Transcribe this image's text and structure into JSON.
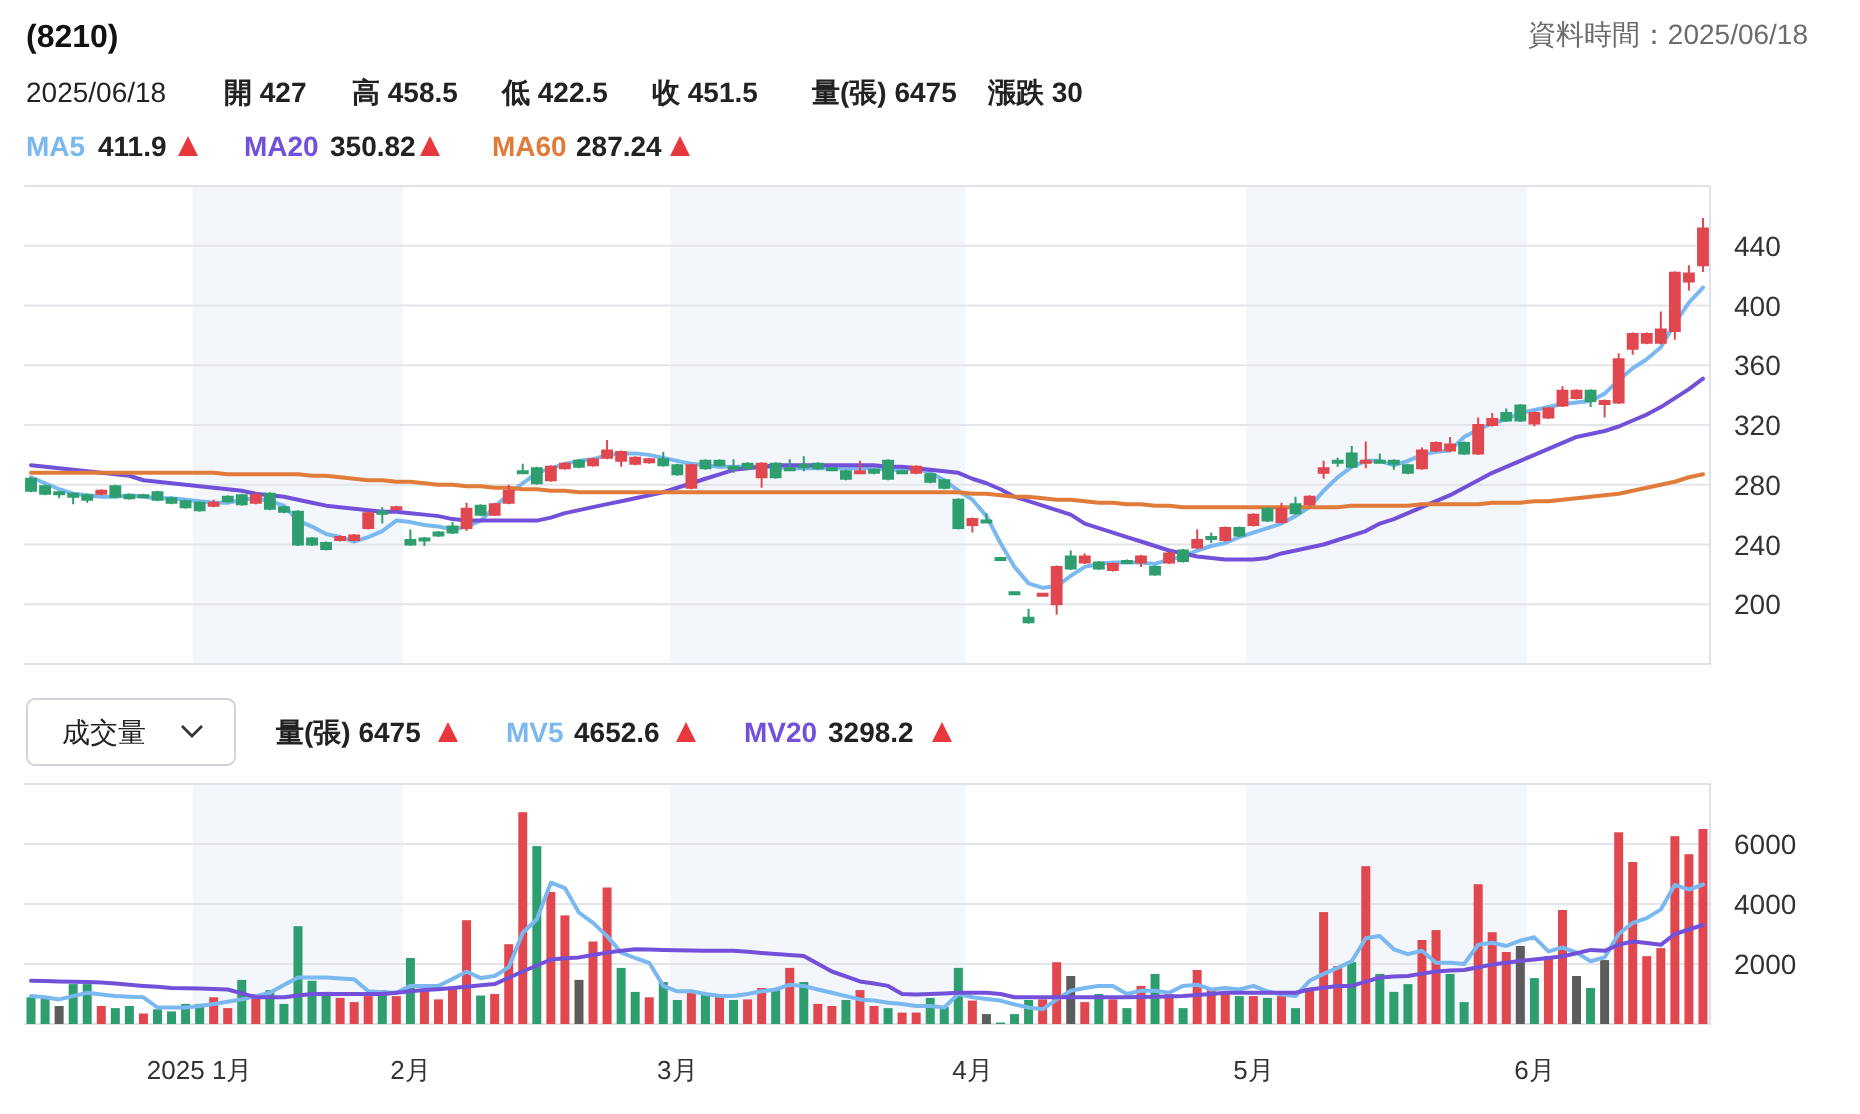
{
  "chart_data": [
    {
      "type": "candlestick",
      "title": "(8210)",
      "annotations": [
        "資料時間：2025/06/18",
        "2025/06/18",
        "開 427",
        "高 458.5",
        "低 422.5",
        "收 451.5",
        "量(張) 6475",
        "漲跌 30",
        "411.9",
        "350.82",
        "287.24"
      ],
      "categories": [
        null,
        null,
        null,
        null,
        null,
        null,
        null,
        null,
        null,
        null,
        null,
        null,
        "2025 1月",
        null,
        null,
        null,
        null,
        null,
        null,
        null,
        null,
        null,
        null,
        null,
        null,
        null,
        null,
        "2月",
        null,
        null,
        null,
        null,
        null,
        null,
        null,
        null,
        null,
        null,
        null,
        null,
        null,
        null,
        null,
        null,
        null,
        null,
        "3月",
        null,
        null,
        null,
        null,
        null,
        null,
        null,
        null,
        null,
        null,
        null,
        null,
        null,
        null,
        null,
        null,
        null,
        null,
        null,
        null,
        "4月",
        null,
        null,
        null,
        null,
        null,
        null,
        null,
        null,
        null,
        null,
        null,
        null,
        null,
        null,
        null,
        null,
        null,
        null,
        null,
        "5月",
        null,
        null,
        null,
        null,
        null,
        null,
        null,
        null,
        null,
        null,
        null,
        null,
        null,
        null,
        null,
        null,
        null,
        null,
        null,
        "6月",
        null,
        null,
        null,
        null,
        null,
        null,
        null,
        null,
        null,
        null,
        null,
        null
      ],
      "ohlc": [
        [
          284,
          285,
          275,
          276
        ],
        [
          279,
          280,
          273,
          274
        ],
        [
          275,
          276,
          271,
          274
        ],
        [
          274,
          275,
          267,
          272
        ],
        [
          273,
          274,
          268,
          270
        ],
        [
          274,
          277,
          273,
          276
        ],
        [
          279,
          280,
          271,
          272
        ],
        [
          273,
          274,
          270,
          271
        ],
        [
          273,
          274,
          271,
          272
        ],
        [
          275,
          276,
          269,
          270
        ],
        [
          271,
          272,
          267,
          268
        ],
        [
          269,
          270,
          264,
          265
        ],
        [
          268,
          269,
          262,
          263
        ],
        [
          266,
          270,
          265,
          268
        ],
        [
          272,
          273,
          268,
          269
        ],
        [
          273,
          274,
          266,
          267
        ],
        [
          268,
          275,
          267,
          273
        ],
        [
          274,
          275,
          263,
          264
        ],
        [
          265,
          266,
          261,
          262
        ],
        [
          262,
          263,
          239,
          240
        ],
        [
          244,
          245,
          239,
          240
        ],
        [
          241,
          242,
          236,
          237
        ],
        [
          243,
          246,
          242,
          245
        ],
        [
          243,
          247,
          242,
          246
        ],
        [
          251,
          262,
          250,
          261
        ],
        [
          262,
          265,
          254,
          261
        ],
        [
          264,
          266,
          263,
          265
        ],
        [
          243,
          250,
          239,
          240
        ],
        [
          244,
          245,
          239,
          243
        ],
        [
          248,
          249,
          245,
          246
        ],
        [
          252,
          255,
          247,
          248
        ],
        [
          251,
          268,
          249,
          264
        ],
        [
          266,
          267,
          259,
          260
        ],
        [
          260,
          268,
          259,
          267
        ],
        [
          268,
          280,
          267,
          276
        ],
        [
          289,
          294,
          287,
          288
        ],
        [
          291,
          292,
          280,
          281
        ],
        [
          283,
          293,
          282,
          292
        ],
        [
          291,
          295,
          290,
          294
        ],
        [
          296,
          297,
          291,
          292
        ],
        [
          293,
          298,
          292,
          297
        ],
        [
          298,
          310,
          297,
          303
        ],
        [
          296,
          303,
          292,
          302
        ],
        [
          294,
          299,
          293,
          298
        ],
        [
          295,
          298,
          294,
          297
        ],
        [
          297,
          302,
          292,
          293
        ],
        [
          293,
          294,
          286,
          287
        ],
        [
          278,
          294,
          277,
          293
        ],
        [
          296,
          297,
          290,
          291
        ],
        [
          296,
          297,
          292,
          293
        ],
        [
          292,
          297,
          288,
          291
        ],
        [
          294,
          295,
          290,
          291
        ],
        [
          285,
          295,
          278,
          294
        ],
        [
          294,
          295,
          284,
          285
        ],
        [
          291,
          297,
          290,
          290
        ],
        [
          293,
          299,
          289,
          292
        ],
        [
          294,
          295,
          290,
          291
        ],
        [
          291,
          292,
          289,
          290
        ],
        [
          289,
          290,
          283,
          284
        ],
        [
          288,
          296,
          287,
          289
        ],
        [
          290,
          291,
          287,
          288
        ],
        [
          296,
          297,
          283,
          284
        ],
        [
          289,
          290,
          287,
          288
        ],
        [
          288,
          293,
          287,
          292
        ],
        [
          287,
          288,
          281,
          282
        ],
        [
          283,
          284,
          277,
          278
        ],
        [
          270,
          271,
          250,
          251
        ],
        [
          253,
          258,
          248,
          257
        ],
        [
          256,
          261,
          255,
          256
        ],
        [
          231,
          231,
          231,
          231
        ],
        [
          208,
          208,
          208,
          208
        ],
        [
          191,
          197,
          187,
          188
        ],
        [
          207,
          207,
          207,
          207
        ],
        [
          200,
          226,
          193,
          225
        ],
        [
          232,
          236,
          223,
          224
        ],
        [
          228,
          234,
          227,
          232
        ],
        [
          228,
          229,
          223,
          224
        ],
        [
          223,
          228,
          222,
          227
        ],
        [
          229,
          230,
          228,
          228
        ],
        [
          228,
          233,
          225,
          232
        ],
        [
          225,
          226,
          219,
          220
        ],
        [
          228,
          235,
          227,
          234
        ],
        [
          236,
          237,
          228,
          229
        ],
        [
          238,
          250,
          237,
          243
        ],
        [
          245,
          248,
          241,
          244
        ],
        [
          243,
          252,
          242,
          251
        ],
        [
          251,
          252,
          245,
          246
        ],
        [
          253,
          261,
          252,
          260
        ],
        [
          264,
          265,
          255,
          256
        ],
        [
          255,
          268,
          254,
          264
        ],
        [
          267,
          272,
          260,
          261
        ],
        [
          267,
          273,
          266,
          272
        ],
        [
          288,
          296,
          284,
          291
        ],
        [
          296,
          298,
          292,
          295
        ],
        [
          301,
          306,
          291,
          292
        ],
        [
          295,
          309,
          291,
          296
        ],
        [
          296,
          301,
          294,
          295
        ],
        [
          296,
          297,
          290,
          294
        ],
        [
          293,
          294,
          287,
          288
        ],
        [
          291,
          305,
          290,
          303
        ],
        [
          303,
          309,
          302,
          308
        ],
        [
          303,
          312,
          302,
          307
        ],
        [
          308,
          309,
          300,
          301
        ],
        [
          301,
          325,
          300,
          320
        ],
        [
          320,
          328,
          319,
          324
        ],
        [
          328,
          331,
          322,
          323
        ],
        [
          333,
          334,
          322,
          323
        ],
        [
          321,
          329,
          319,
          328
        ],
        [
          325,
          332,
          324,
          331
        ],
        [
          333,
          346,
          332,
          343
        ],
        [
          338,
          344,
          337,
          343
        ],
        [
          343,
          344,
          332,
          336
        ],
        [
          334,
          337,
          325,
          336
        ],
        [
          335,
          368,
          334,
          364
        ],
        [
          371,
          382,
          367,
          381
        ],
        [
          375,
          382,
          374,
          381
        ],
        [
          375,
          396,
          374,
          384
        ],
        [
          383,
          423,
          377,
          422
        ],
        [
          416,
          427,
          410,
          421.5
        ],
        [
          427,
          458.5,
          422.5,
          451.5
        ]
      ],
      "colors": [
        "#2e9e6e",
        "#2e9e6e",
        "#2e9e6e",
        "#2e9e6e",
        "#2e9e6e",
        "#e0474f",
        "#2e9e6e",
        "#2e9e6e",
        "#2e9e6e",
        "#2e9e6e",
        "#2e9e6e",
        "#2e9e6e",
        "#2e9e6e",
        "#e0474f",
        "#2e9e6e",
        "#2e9e6e",
        "#e0474f",
        "#2e9e6e",
        "#2e9e6e",
        "#2e9e6e",
        "#2e9e6e",
        "#2e9e6e",
        "#e0474f",
        "#e0474f",
        "#e0474f",
        "#2e9e6e",
        "#e0474f",
        "#2e9e6e",
        "#2e9e6e",
        "#2e9e6e",
        "#2e9e6e",
        "#e0474f",
        "#2e9e6e",
        "#e0474f",
        "#e0474f",
        "#2e9e6e",
        "#2e9e6e",
        "#e0474f",
        "#e0474f",
        "#2e9e6e",
        "#e0474f",
        "#e0474f",
        "#e0474f",
        "#e0474f",
        "#e0474f",
        "#2e9e6e",
        "#2e9e6e",
        "#e0474f",
        "#2e9e6e",
        "#2e9e6e",
        "#2e9e6e",
        "#2e9e6e",
        "#e0474f",
        "#2e9e6e",
        "#2e9e6e",
        "#2e9e6e",
        "#2e9e6e",
        "#2e9e6e",
        "#2e9e6e",
        "#e0474f",
        "#2e9e6e",
        "#2e9e6e",
        "#2e9e6e",
        "#e0474f",
        "#2e9e6e",
        "#2e9e6e",
        "#2e9e6e",
        "#e0474f",
        "#2e9e6e",
        "#2e9e6e",
        "#2e9e6e",
        "#2e9e6e",
        "#e0474f",
        "#e0474f",
        "#2e9e6e",
        "#e0474f",
        "#2e9e6e",
        "#e0474f",
        "#2e9e6e",
        "#e0474f",
        "#2e9e6e",
        "#e0474f",
        "#2e9e6e",
        "#e0474f",
        "#2e9e6e",
        "#e0474f",
        "#2e9e6e",
        "#e0474f",
        "#2e9e6e",
        "#e0474f",
        "#2e9e6e",
        "#e0474f",
        "#e0474f",
        "#2e9e6e",
        "#2e9e6e",
        "#e0474f",
        "#2e9e6e",
        "#2e9e6e",
        "#2e9e6e",
        "#e0474f",
        "#e0474f",
        "#e0474f",
        "#2e9e6e",
        "#e0474f",
        "#e0474f",
        "#2e9e6e",
        "#2e9e6e",
        "#e0474f",
        "#e0474f",
        "#e0474f",
        "#e0474f",
        "#2e9e6e",
        "#e0474f",
        "#e0474f",
        "#e0474f",
        "#e0474f",
        "#e0474f",
        "#e0474f",
        "#e0474f",
        "#e0474f"
      ],
      "series": [
        {
          "name": "MA5",
          "type": "line",
          "color": "#7ab8f0",
          "values": [
            285,
            281,
            277,
            274,
            273,
            272,
            272,
            273,
            272,
            271,
            271,
            270,
            269,
            268,
            268,
            270,
            271,
            269,
            266,
            256,
            252,
            247,
            245,
            242,
            245,
            249,
            256,
            255,
            253,
            252,
            250,
            252,
            256,
            265,
            274,
            281,
            288,
            291,
            294,
            296,
            297,
            300,
            301,
            301,
            300,
            298,
            296,
            294,
            293,
            292,
            292,
            292,
            292,
            292,
            291,
            291,
            291,
            291,
            291,
            291,
            291,
            290,
            290,
            291,
            288,
            283,
            276,
            270,
            259,
            241,
            225,
            214,
            211,
            212,
            219,
            225,
            227,
            228,
            228,
            228,
            227,
            230,
            232,
            236,
            239,
            241,
            245,
            248,
            251,
            254,
            259,
            265,
            276,
            285,
            292,
            296,
            296,
            293,
            296,
            300,
            302,
            303,
            312,
            317,
            321,
            324,
            328,
            330,
            332,
            334,
            335,
            336,
            341,
            350,
            358,
            364,
            372,
            388,
            402,
            412
          ]
        },
        {
          "name": "MA20",
          "type": "line",
          "color": "#7350d9",
          "values": [
            293,
            292,
            291,
            290,
            289,
            288,
            287,
            286,
            283,
            282,
            281,
            280,
            279,
            278,
            277,
            276,
            274,
            273,
            272,
            270,
            268,
            266,
            265,
            264,
            263,
            262,
            262,
            261,
            260,
            259,
            257,
            256,
            256,
            256,
            256,
            256,
            256,
            258,
            261,
            263,
            265,
            267,
            269,
            271,
            273,
            275,
            278,
            281,
            284,
            287,
            290,
            291,
            292,
            293,
            293,
            293,
            293,
            293,
            293,
            293,
            293,
            292,
            292,
            291,
            290,
            289,
            288,
            284,
            281,
            277,
            272,
            269,
            266,
            263,
            260,
            254,
            251,
            248,
            245,
            242,
            239,
            236,
            234,
            232,
            231,
            230,
            230,
            230,
            231,
            234,
            236,
            238,
            240,
            243,
            246,
            249,
            254,
            257,
            261,
            265,
            269,
            273,
            278,
            283,
            288,
            292,
            296,
            300,
            304,
            308,
            312,
            314,
            316,
            319,
            323,
            327,
            332,
            338,
            344,
            351
          ]
        },
        {
          "name": "MA60",
          "type": "line",
          "color": "#e07b39",
          "values": [
            288,
            288,
            288,
            288,
            288,
            288,
            288,
            288,
            288,
            288,
            288,
            288,
            288,
            288,
            287,
            287,
            287,
            287,
            287,
            287,
            286,
            286,
            285,
            284,
            283,
            283,
            282,
            282,
            281,
            280,
            280,
            279,
            279,
            278,
            278,
            277,
            277,
            276,
            276,
            275,
            275,
            275,
            275,
            275,
            275,
            275,
            275,
            275,
            275,
            275,
            275,
            275,
            275,
            275,
            275,
            275,
            275,
            275,
            275,
            275,
            275,
            275,
            275,
            275,
            275,
            275,
            275,
            274,
            274,
            273,
            272,
            272,
            271,
            270,
            270,
            269,
            268,
            268,
            267,
            267,
            266,
            266,
            265,
            265,
            265,
            265,
            265,
            265,
            265,
            265,
            265,
            265,
            265,
            265,
            266,
            266,
            266,
            266,
            266,
            267,
            267,
            267,
            267,
            267,
            268,
            268,
            268,
            269,
            269,
            270,
            271,
            272,
            273,
            274,
            276,
            278,
            280,
            282,
            285,
            287
          ]
        }
      ],
      "bands": [
        {
          "axis": "x",
          "from": "2025 1月",
          "to": "2月",
          "color": "#f3f6fa"
        },
        {
          "axis": "x",
          "from": "3月",
          "to": "4月",
          "color": "#f3f6fa"
        },
        {
          "axis": "x",
          "from": "5月",
          "to": "6月",
          "color": "#f3f6fa"
        }
      ],
      "ylim": [
        160,
        480
      ],
      "yticks": [
        200,
        240,
        280,
        320,
        360,
        400,
        440
      ],
      "grid": "y",
      "tick_labels": "y",
      "legend": "top left"
    },
    {
      "type": "bar",
      "annotations": [
        "成交量",
        "量(張) 6475",
        "4652.6",
        "3298.2"
      ],
      "categories": [
        null,
        null,
        null,
        null,
        null,
        null,
        null,
        null,
        null,
        null,
        null,
        null,
        "2025 1月",
        null,
        null,
        null,
        null,
        null,
        null,
        null,
        null,
        null,
        null,
        null,
        null,
        null,
        null,
        "2月",
        null,
        null,
        null,
        null,
        null,
        null,
        null,
        null,
        null,
        null,
        null,
        null,
        null,
        null,
        null,
        null,
        null,
        null,
        "3月",
        null,
        null,
        null,
        null,
        null,
        null,
        null,
        null,
        null,
        null,
        null,
        null,
        null,
        null,
        null,
        null,
        null,
        null,
        null,
        null,
        "4月",
        null,
        null,
        null,
        null,
        null,
        null,
        null,
        null,
        null,
        null,
        null,
        null,
        null,
        null,
        null,
        null,
        null,
        null,
        null,
        "5月",
        null,
        null,
        null,
        null,
        null,
        null,
        null,
        null,
        null,
        null,
        null,
        null,
        null,
        null,
        null,
        null,
        null,
        null,
        null,
        "6月",
        null,
        null,
        null,
        null,
        null,
        null,
        null,
        null,
        null,
        null,
        null,
        null
      ],
      "series": [
        {
          "type": "bar",
          "values": [
            890,
            930,
            600,
            1330,
            1330,
            600,
            530,
            600,
            350,
            490,
            420,
            670,
            670,
            890,
            530,
            1470,
            1000,
            1130,
            670,
            3260,
            1440,
            1070,
            870,
            730,
            930,
            1130,
            930,
            2200,
            1150,
            820,
            1200,
            3460,
            950,
            1000,
            2660,
            7060,
            5930,
            4400,
            3620,
            1470,
            2750,
            4550,
            1870,
            1070,
            890,
            1400,
            800,
            1070,
            1000,
            930,
            800,
            820,
            1200,
            1130,
            1870,
            1400,
            670,
            600,
            800,
            1130,
            600,
            530,
            380,
            380,
            870,
            560,
            1870,
            780,
            330,
            50,
            330,
            800,
            820,
            2060,
            1600,
            730,
            1000,
            820,
            530,
            1270,
            1670,
            1000,
            530,
            1800,
            1150,
            1070,
            930,
            930,
            870,
            930,
            530,
            1200,
            3730,
            1930,
            2060,
            5260,
            1670,
            1070,
            1330,
            2800,
            3130,
            1670,
            730,
            4660,
            3060,
            2400,
            2600,
            1530,
            2260,
            3800,
            1600,
            1200,
            2130,
            6390,
            5400,
            2260,
            2530,
            6260,
            5660,
            6500
          ],
          "colors": [
            "#2e9e6e",
            "#2e9e6e",
            "#5c5c5c",
            "#2e9e6e",
            "#2e9e6e",
            "#e0474f",
            "#2e9e6e",
            "#2e9e6e",
            "#e0474f",
            "#2e9e6e",
            "#2e9e6e",
            "#2e9e6e",
            "#2e9e6e",
            "#e0474f",
            "#e0474f",
            "#2e9e6e",
            "#e0474f",
            "#2e9e6e",
            "#2e9e6e",
            "#2e9e6e",
            "#2e9e6e",
            "#2e9e6e",
            "#e0474f",
            "#e0474f",
            "#e0474f",
            "#2e9e6e",
            "#e0474f",
            "#2e9e6e",
            "#e0474f",
            "#e0474f",
            "#e0474f",
            "#e0474f",
            "#2e9e6e",
            "#e0474f",
            "#e0474f",
            "#e0474f",
            "#2e9e6e",
            "#e0474f",
            "#e0474f",
            "#5c5c5c",
            "#e0474f",
            "#e0474f",
            "#2e9e6e",
            "#2e9e6e",
            "#e0474f",
            "#2e9e6e",
            "#2e9e6e",
            "#e0474f",
            "#2e9e6e",
            "#e0474f",
            "#2e9e6e",
            "#e0474f",
            "#e0474f",
            "#2e9e6e",
            "#e0474f",
            "#2e9e6e",
            "#e0474f",
            "#e0474f",
            "#2e9e6e",
            "#e0474f",
            "#e0474f",
            "#2e9e6e",
            "#e0474f",
            "#e0474f",
            "#2e9e6e",
            "#2e9e6e",
            "#2e9e6e",
            "#e0474f",
            "#5c5c5c",
            "#2e9e6e",
            "#2e9e6e",
            "#2e9e6e",
            "#e0474f",
            "#e0474f",
            "#5c5c5c",
            "#e0474f",
            "#2e9e6e",
            "#e0474f",
            "#2e9e6e",
            "#e0474f",
            "#2e9e6e",
            "#e0474f",
            "#2e9e6e",
            "#e0474f",
            "#e0474f",
            "#e0474f",
            "#2e9e6e",
            "#e0474f",
            "#2e9e6e",
            "#e0474f",
            "#2e9e6e",
            "#e0474f",
            "#e0474f",
            "#e0474f",
            "#2e9e6e",
            "#e0474f",
            "#2e9e6e",
            "#2e9e6e",
            "#2e9e6e",
            "#e0474f",
            "#e0474f",
            "#2e9e6e",
            "#2e9e6e",
            "#e0474f",
            "#e0474f",
            "#e0474f",
            "#5c5c5c",
            "#2e9e6e",
            "#e0474f",
            "#e0474f",
            "#5c5c5c",
            "#2e9e6e",
            "#5c5c5c",
            "#e0474f",
            "#e0474f",
            "#e0474f",
            "#e0474f",
            "#e0474f",
            "#e0474f",
            "#e0474f"
          ]
        },
        {
          "name": "MV5",
          "type": "line",
          "color": "#7ab8f0",
          "values": [
            930,
            890,
            820,
            930,
            1040,
            980,
            930,
            910,
            890,
            550,
            550,
            550,
            600,
            670,
            740,
            820,
            930,
            1040,
            1300,
            1550,
            1550,
            1550,
            1520,
            1490,
            1090,
            1060,
            1040,
            1270,
            1270,
            1270,
            1500,
            1750,
            1530,
            1600,
            1890,
            3040,
            3490,
            4710,
            4530,
            3710,
            3370,
            2930,
            2380,
            2200,
            2040,
            1270,
            1090,
            1090,
            1000,
            930,
            930,
            1000,
            1090,
            1150,
            1310,
            1270,
            1150,
            1040,
            930,
            820,
            780,
            710,
            670,
            600,
            600,
            550,
            1000,
            890,
            830,
            780,
            650,
            550,
            490,
            820,
            1110,
            1200,
            1270,
            1270,
            1000,
            1110,
            1110,
            1040,
            1270,
            1310,
            1150,
            1200,
            1150,
            1270,
            1090,
            980,
            930,
            1440,
            1670,
            1870,
            2090,
            2860,
            2930,
            2490,
            2330,
            2440,
            2040,
            2040,
            2000,
            2640,
            2710,
            2600,
            2780,
            2890,
            2420,
            2550,
            2380,
            2090,
            2220,
            3000,
            3370,
            3530,
            3820,
            4640,
            4480,
            4650
          ]
        },
        {
          "name": "MV20",
          "type": "line",
          "color": "#7350d9",
          "values": [
            1440,
            1430,
            1420,
            1410,
            1400,
            1380,
            1350,
            1310,
            1270,
            1240,
            1200,
            1190,
            1180,
            1170,
            1150,
            1020,
            890,
            890,
            890,
            950,
            1000,
            1000,
            1000,
            1000,
            1000,
            1000,
            1040,
            1090,
            1130,
            1160,
            1200,
            1240,
            1290,
            1330,
            1540,
            1750,
            1950,
            2150,
            2190,
            2220,
            2300,
            2380,
            2440,
            2490,
            2480,
            2470,
            2460,
            2450,
            2440,
            2440,
            2440,
            2410,
            2370,
            2330,
            2300,
            2270,
            2010,
            1750,
            1590,
            1420,
            1350,
            1270,
            1000,
            980,
            1000,
            1020,
            1040,
            1040,
            1040,
            1000,
            890,
            890,
            890,
            890,
            890,
            890,
            890,
            890,
            890,
            900,
            910,
            920,
            930,
            970,
            1000,
            1040,
            1040,
            1040,
            1040,
            1040,
            1040,
            1150,
            1210,
            1270,
            1270,
            1410,
            1550,
            1580,
            1600,
            1680,
            1750,
            1780,
            1800,
            1890,
            1980,
            2040,
            2100,
            2150,
            2200,
            2260,
            2360,
            2470,
            2440,
            2640,
            2750,
            2700,
            2640,
            3000,
            3150,
            3300
          ]
        }
      ],
      "bands": [
        {
          "axis": "x",
          "from": "2025 1月",
          "to": "2月",
          "color": "#f3f6fa"
        },
        {
          "axis": "x",
          "from": "3月",
          "to": "4月",
          "color": "#f3f6fa"
        },
        {
          "axis": "x",
          "from": "5月",
          "to": "6月",
          "color": "#f3f6fa"
        }
      ],
      "ylim": [
        0,
        8000
      ],
      "yticks": [
        2000,
        4000,
        6000
      ],
      "grid": "y",
      "legend": "top left"
    }
  ]
}
